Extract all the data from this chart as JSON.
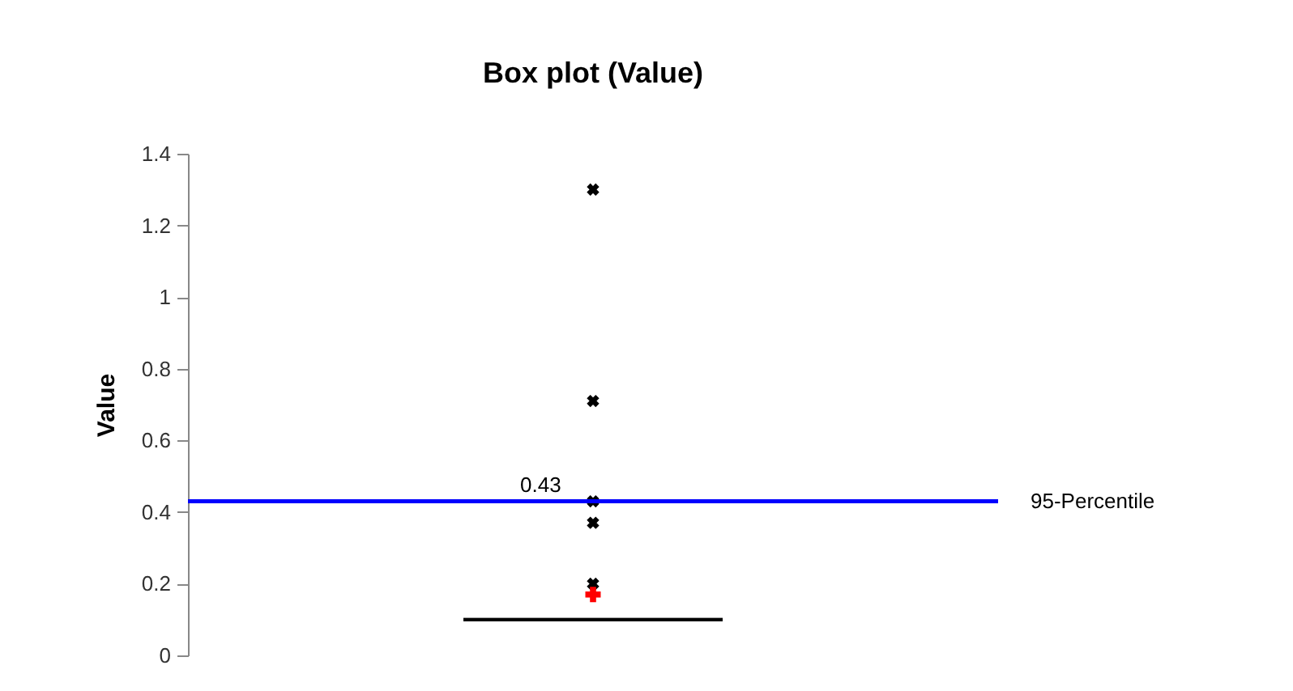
{
  "chart_data": {
    "type": "box",
    "title": "Box plot (Value)",
    "ylabel": "Value",
    "categories": [
      null
    ],
    "boxes": [
      {
        "low": 0.1,
        "q1": 0.1,
        "median": 0.1,
        "q3": 0.1,
        "high": 0.1,
        "mean": 0.17,
        "outliers": [
          0.2,
          0.37,
          0.43,
          0.71,
          1.3
        ]
      }
    ],
    "ylim": [
      0,
      1.4
    ],
    "yticks": [
      0,
      0.2,
      0.4,
      0.6,
      0.8,
      1,
      1.2,
      1.4
    ],
    "ref_lines": [
      {
        "axis": "y",
        "value": 0.43,
        "label": "95-Percentile",
        "color": "#0000ff"
      }
    ],
    "annotations": [
      {
        "text": "0.43",
        "y": 0.43
      }
    ],
    "grid": false
  }
}
